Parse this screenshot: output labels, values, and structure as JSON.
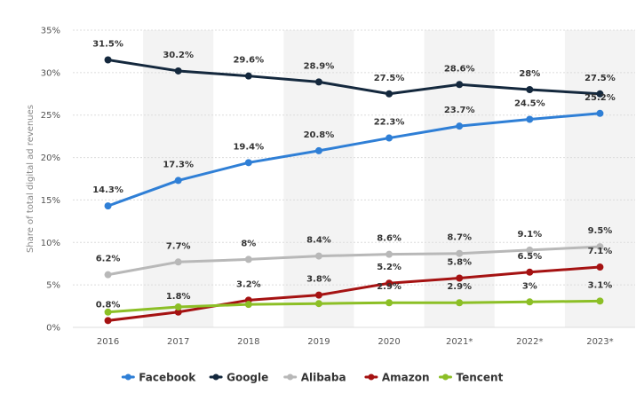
{
  "chart_data": {
    "type": "line",
    "categories": [
      "2016",
      "2017",
      "2018",
      "2019",
      "2020",
      "2021*",
      "2022*",
      "2023*"
    ],
    "ylabel": "Share of total digital ad revenues",
    "ylim": [
      0,
      35
    ],
    "y_ticks": [
      "0%",
      "5%",
      "10%",
      "15%",
      "20%",
      "25%",
      "30%",
      "35%"
    ],
    "grid": true,
    "legend_position": "bottom",
    "series": [
      {
        "name": "Facebook",
        "color": "#2f7fd6",
        "values": [
          14.3,
          17.3,
          19.4,
          20.8,
          22.3,
          23.7,
          24.5,
          25.2
        ],
        "labels": [
          "14.3%",
          "17.3%",
          "19.4%",
          "20.8%",
          "22.3%",
          "23.7%",
          "24.5%",
          "25.2%"
        ]
      },
      {
        "name": "Google",
        "color": "#14283d",
        "values": [
          31.5,
          30.2,
          29.6,
          28.9,
          27.5,
          28.6,
          28,
          27.5
        ],
        "labels": [
          "31.5%",
          "30.2%",
          "29.6%",
          "28.9%",
          "27.5%",
          "28.6%",
          "28%",
          "27.5%"
        ]
      },
      {
        "name": "Alibaba",
        "color": "#b8b8b8",
        "values": [
          6.2,
          7.7,
          8,
          8.4,
          8.6,
          8.7,
          9.1,
          9.5
        ],
        "labels": [
          "6.2%",
          "7.7%",
          "8%",
          "8.4%",
          "8.6%",
          "8.7%",
          "9.1%",
          "9.5%"
        ]
      },
      {
        "name": "Amazon",
        "color": "#a51212",
        "values": [
          0.8,
          1.8,
          3.2,
          3.8,
          5.2,
          5.8,
          6.5,
          7.1
        ],
        "labels": [
          "0.8%",
          "1.8%",
          "3.2%",
          "3.8%",
          "5.2%",
          "5.8%",
          "6.5%",
          "7.1%"
        ]
      },
      {
        "name": "Tencent",
        "color": "#8cbf26",
        "values": [
          1.8,
          2.4,
          2.7,
          2.8,
          2.9,
          2.9,
          3,
          3.1
        ],
        "labels": [
          "",
          "",
          "",
          "",
          "2.9%",
          "2.9%",
          "3%",
          "3.1%"
        ]
      }
    ]
  }
}
